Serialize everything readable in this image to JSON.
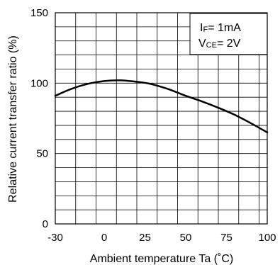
{
  "chart_data": {
    "type": "line",
    "xlabel": "Ambient temperature Ta (˚C)",
    "ylabel": "Relative current transfer ratio (%)",
    "xlim": [
      -30,
      100
    ],
    "ylim": [
      0,
      150
    ],
    "x_ticks": [
      -30,
      0,
      25,
      50,
      75,
      100
    ],
    "y_ticks": [
      0,
      50,
      100,
      150
    ],
    "x_grid_step": 12.5,
    "y_grid_step": 10,
    "grid": true,
    "series": [
      {
        "x": [
          -30,
          -20,
          -10,
          0,
          10,
          20,
          25,
          30,
          40,
          50,
          60,
          70,
          80,
          90,
          100
        ],
        "values": [
          91,
          96,
          99.5,
          101.5,
          102,
          101,
          100.2,
          99,
          95.5,
          91,
          87,
          82.5,
          77.5,
          71.5,
          65
        ]
      }
    ],
    "color": "#000000",
    "legend_position": "top-right",
    "annotation": {
      "line1": {
        "main": "I",
        "sub": "F",
        "rest": "= 1mA"
      },
      "line2": {
        "main": "V",
        "sub": "CE",
        "rest": "= 2V"
      }
    }
  }
}
